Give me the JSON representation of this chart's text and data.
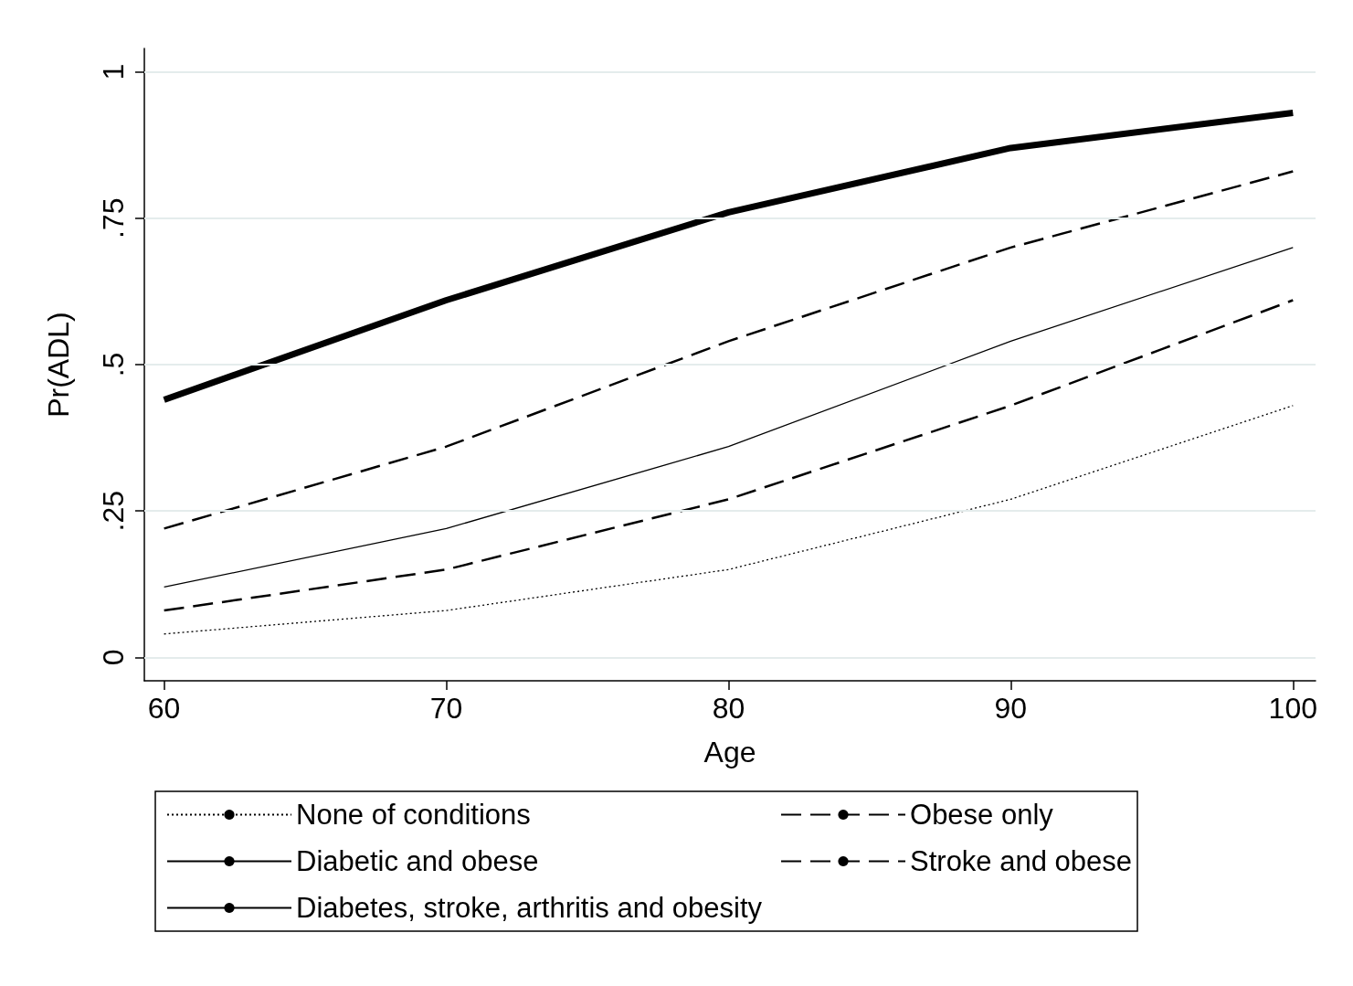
{
  "chart_data": {
    "type": "line",
    "xlabel": "Age",
    "ylabel": "Pr(ADL)",
    "x": [
      60,
      70,
      80,
      90,
      100
    ],
    "xlim": [
      59.3,
      100.8
    ],
    "xticks": [
      60,
      70,
      80,
      90,
      100
    ],
    "ylim": [
      -0.04,
      1.04
    ],
    "yticks": [
      {
        "value": 0,
        "label": "0"
      },
      {
        "value": 0.25,
        "label": ".25"
      },
      {
        "value": 0.5,
        "label": ".5"
      },
      {
        "value": 0.75,
        "label": ".75"
      },
      {
        "value": 1,
        "label": "1"
      }
    ],
    "grid": "y",
    "legend": "bottom",
    "series": [
      {
        "name": "None of conditions",
        "color": "#000000",
        "line_style": "dotted",
        "values": [
          0.04,
          0.08,
          0.15,
          0.27,
          0.43
        ]
      },
      {
        "name": "Obese only",
        "color": "#000000",
        "line_style": "dashed",
        "values": [
          0.08,
          0.15,
          0.27,
          0.43,
          0.61
        ]
      },
      {
        "name": "Diabetic and obese",
        "color": "#000000",
        "line_style": "solid",
        "values": [
          0.12,
          0.22,
          0.36,
          0.54,
          0.7
        ]
      },
      {
        "name": "Stroke and obese",
        "color": "#000000",
        "line_style": "dashed",
        "values": [
          0.22,
          0.36,
          0.54,
          0.7,
          0.83
        ]
      },
      {
        "name": "Diabetes, stroke, arthritis and obesity",
        "color": "#000000",
        "line_style": "solid",
        "values": [
          0.44,
          0.61,
          0.76,
          0.87,
          0.93
        ]
      }
    ]
  }
}
